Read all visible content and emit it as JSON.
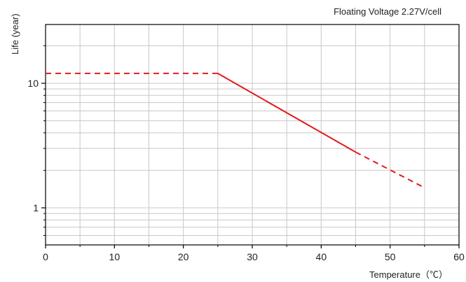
{
  "chart_data": {
    "type": "line",
    "title": "Floating Voltage 2.27V/cell",
    "xlabel": "Temperature（℃）",
    "ylabel": "Life (year)",
    "xlim": [
      0,
      60
    ],
    "ylim": [
      0.5,
      30
    ],
    "yscale": "log",
    "grid": true,
    "x_ticks": [
      "0",
      "10",
      "20",
      "30",
      "40",
      "50",
      "60"
    ],
    "y_ticks": [
      "1",
      "10"
    ],
    "colors": {
      "line": "#e31b1b",
      "grid": "#c8c8c8",
      "axis": "#000000"
    },
    "series": [
      {
        "x": [
          0,
          25,
          45,
          55
        ],
        "y": [
          12,
          12,
          2.8,
          1.45
        ],
        "style": [
          "dashed",
          "solid",
          "dashed"
        ]
      }
    ]
  }
}
